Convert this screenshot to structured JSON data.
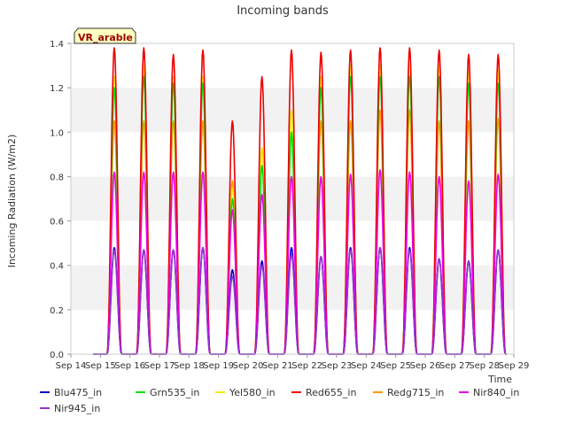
{
  "chart_data": {
    "type": "line",
    "title": "Incoming bands",
    "xlabel": "Time",
    "ylabel": "Incoming Radiation (W/m2)",
    "ylim": [
      0.0,
      1.4
    ],
    "xlim_days": [
      14,
      29
    ],
    "y_ticks": [
      "0.0",
      "0.2",
      "0.4",
      "0.6",
      "0.8",
      "1.0",
      "1.2",
      "1.4"
    ],
    "x_ticks": [
      "Sep 14",
      "Sep 15",
      "Sep 16",
      "Sep 17",
      "Sep 18",
      "Sep 19",
      "Sep 20",
      "Sep 21",
      "Sep 22",
      "Sep 23",
      "Sep 24",
      "Sep 25",
      "Sep 26",
      "Sep 27",
      "Sep 28",
      "Sep 29"
    ],
    "badge": "VR_arable",
    "grid": "horizontal bands",
    "legend_position": "bottom",
    "days": [
      15,
      16,
      17,
      18,
      19,
      20,
      21,
      22,
      23,
      24,
      25,
      26,
      27,
      28
    ],
    "series": [
      {
        "name": "Blu475_in",
        "color": "#0000cc",
        "peaks": [
          0.48,
          0.47,
          0.47,
          0.48,
          0.38,
          0.42,
          0.48,
          0.44,
          0.48,
          0.48,
          0.48,
          0.43,
          0.42,
          0.47
        ]
      },
      {
        "name": "Grn535_in",
        "color": "#00dd00",
        "peaks": [
          1.2,
          1.25,
          1.22,
          1.22,
          0.7,
          0.85,
          1.0,
          1.2,
          1.25,
          1.25,
          1.25,
          1.25,
          1.22,
          1.22
        ]
      },
      {
        "name": "Yel580_in",
        "color": "#eeee00",
        "peaks": [
          1.25,
          1.3,
          1.25,
          1.25,
          0.75,
          0.93,
          1.1,
          1.25,
          1.3,
          1.3,
          1.3,
          1.3,
          1.28,
          1.28
        ]
      },
      {
        "name": "Red655_in",
        "color": "#ee0000",
        "peaks": [
          1.38,
          1.38,
          1.35,
          1.37,
          1.05,
          1.25,
          1.37,
          1.36,
          1.37,
          1.38,
          1.38,
          1.37,
          1.35,
          1.35
        ]
      },
      {
        "name": "Redg715_in",
        "color": "#ff9900",
        "peaks": [
          1.05,
          1.05,
          1.05,
          1.05,
          0.78,
          0.93,
          1.0,
          1.05,
          1.05,
          1.1,
          1.1,
          1.05,
          1.05,
          1.06
        ]
      },
      {
        "name": "Nir840_in",
        "color": "#ee00ee",
        "peaks": [
          0.82,
          0.82,
          0.82,
          0.82,
          0.65,
          0.72,
          0.8,
          0.8,
          0.81,
          0.83,
          0.82,
          0.8,
          0.78,
          0.81
        ]
      },
      {
        "name": "Nir945_in",
        "color": "#9933cc",
        "peaks": [
          0.47,
          0.47,
          0.47,
          0.48,
          0.35,
          0.4,
          0.45,
          0.44,
          0.47,
          0.48,
          0.47,
          0.43,
          0.42,
          0.47
        ]
      }
    ]
  }
}
